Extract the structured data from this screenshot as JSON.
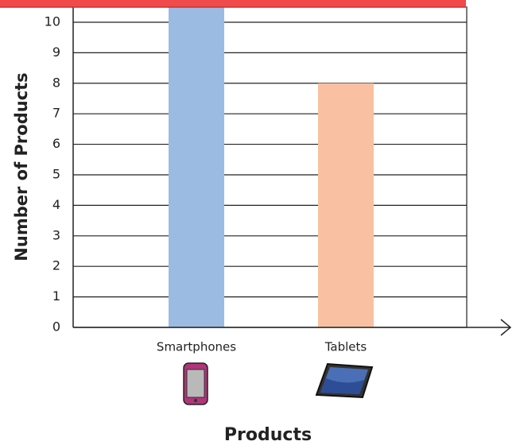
{
  "chart_data": {
    "type": "bar",
    "x_label": "Products",
    "y_label": "Number of Products",
    "categories": [
      "Smartphones",
      "Tablets"
    ],
    "values": [
      10.5,
      8
    ],
    "colors": [
      "#9bbbe3",
      "#f9c1a1"
    ],
    "ylim": [
      0,
      10.52
    ],
    "yticks": [
      0,
      1,
      2,
      3,
      4,
      5,
      6,
      7,
      8,
      9,
      10
    ],
    "grid": true
  }
}
